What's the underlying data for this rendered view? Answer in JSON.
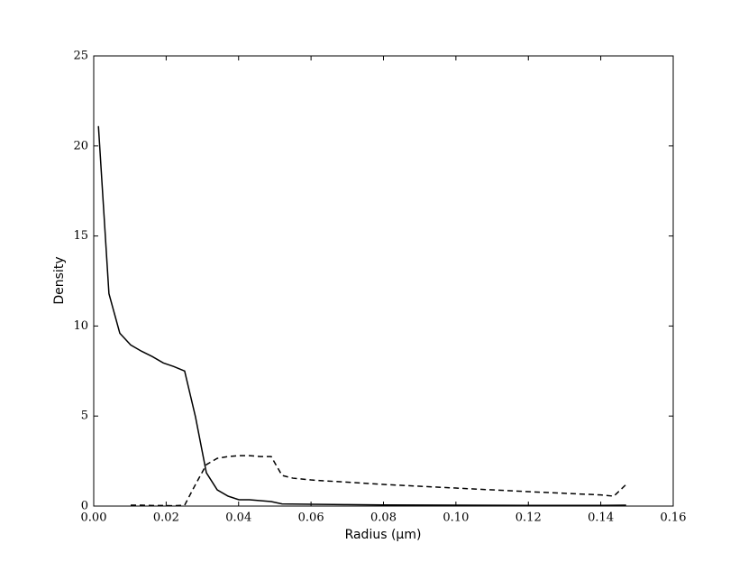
{
  "chart_data": {
    "type": "line",
    "xlabel": "Radius (μm)",
    "ylabel": "Density",
    "xlim": [
      0,
      0.16
    ],
    "ylim": [
      0,
      25
    ],
    "xticks": [
      {
        "value": 0,
        "label": "0.00"
      },
      {
        "value": 0.02,
        "label": "0.02"
      },
      {
        "value": 0.04,
        "label": "0.04"
      },
      {
        "value": 0.06,
        "label": "0.06"
      },
      {
        "value": 0.08,
        "label": "0.08"
      },
      {
        "value": 0.1,
        "label": "0.10"
      },
      {
        "value": 0.12,
        "label": "0.12"
      },
      {
        "value": 0.14,
        "label": "0.14"
      },
      {
        "value": 0.16,
        "label": "0.16"
      }
    ],
    "yticks": [
      0,
      5,
      10,
      15,
      20,
      25
    ],
    "grid": false,
    "series": [
      {
        "color": "#000000",
        "dash": "solid",
        "x": [
          0.0013,
          0.0042,
          0.0072,
          0.0102,
          0.0132,
          0.0162,
          0.0192,
          0.0221,
          0.0251,
          0.0281,
          0.0311,
          0.0341,
          0.0371,
          0.0401,
          0.043,
          0.046,
          0.049,
          0.052,
          0.06,
          0.07,
          0.08,
          0.1,
          0.12,
          0.14,
          0.147
        ],
        "values": [
          21.1,
          11.8,
          9.6,
          8.95,
          8.6,
          8.3,
          7.95,
          7.75,
          7.5,
          4.95,
          1.85,
          0.9,
          0.55,
          0.35,
          0.35,
          0.3,
          0.25,
          0.12,
          0.1,
          0.08,
          0.06,
          0.05,
          0.04,
          0.04,
          0.05
        ]
      },
      {
        "color": "#000000",
        "dash": "dashed",
        "x": [
          0.0102,
          0.0132,
          0.0162,
          0.0192,
          0.0221,
          0.0251,
          0.0281,
          0.0311,
          0.0341,
          0.0371,
          0.0401,
          0.043,
          0.046,
          0.049,
          0.052,
          0.055,
          0.06,
          0.08,
          0.1,
          0.12,
          0.14,
          0.1436,
          0.147
        ],
        "values": [
          0.05,
          0.05,
          0.03,
          0.03,
          0.02,
          0.05,
          1.2,
          2.3,
          2.65,
          2.75,
          2.8,
          2.8,
          2.75,
          2.75,
          1.7,
          1.55,
          1.45,
          1.2,
          1.0,
          0.8,
          0.62,
          0.55,
          1.2
        ]
      }
    ]
  }
}
